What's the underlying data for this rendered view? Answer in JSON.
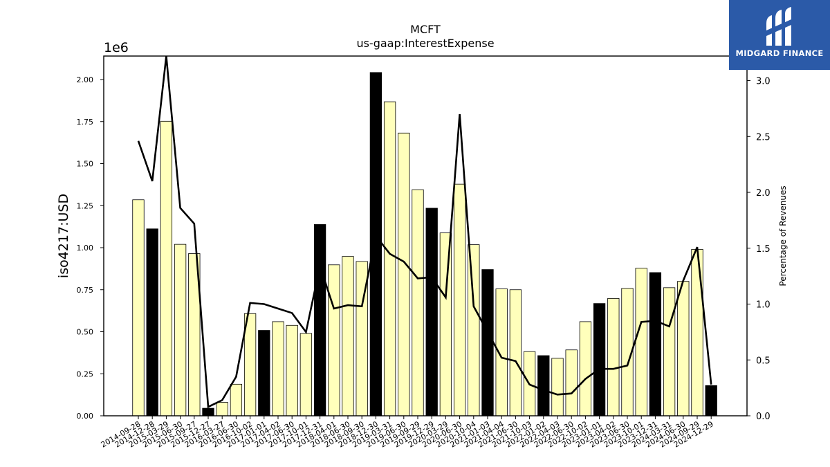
{
  "chart_data": {
    "type": "bar",
    "title": "MCFT",
    "subtitle": "us-gaap:InterestExpense",
    "ylabel": "iso4217:USD",
    "y_offset_label": "1e6",
    "ylim": [
      0,
      2140000
    ],
    "yticks": [
      "0.00",
      "0.25",
      "0.50",
      "0.75",
      "1.00",
      "1.25",
      "1.50",
      "1.75",
      "2.00"
    ],
    "ytick_values": [
      0,
      250000,
      500000,
      750000,
      1000000,
      1250000,
      1500000,
      1750000,
      2000000
    ],
    "y2label": "Percentage of Revenues",
    "y2lim": [
      0,
      3.22
    ],
    "y2ticks": [
      "0.0",
      "0.5",
      "1.0",
      "1.5",
      "2.0",
      "2.5",
      "3.0"
    ],
    "y2tick_values": [
      0,
      0.5,
      1.0,
      1.5,
      2.0,
      2.5,
      3.0
    ],
    "grid": false,
    "categories": [
      "2014-09-28",
      "2014-12-28",
      "2015-03-29",
      "2015-06-30",
      "2015-09-27",
      "2015-12-27",
      "2016-03-27",
      "2016-06-30",
      "2016-10-02",
      "2017-01-01",
      "2017-04-02",
      "2017-06-30",
      "2017-10-01",
      "2017-12-31",
      "2018-04-01",
      "2018-06-30",
      "2018-09-30",
      "2018-12-30",
      "2019-03-31",
      "2019-06-30",
      "2019-09-29",
      "2019-12-29",
      "2020-03-29",
      "2020-06-30",
      "2020-10-04",
      "2021-01-03",
      "2021-04-04",
      "2021-06-30",
      "2021-10-03",
      "2022-01-02",
      "2022-04-03",
      "2022-06-30",
      "2022-10-02",
      "2023-01-01",
      "2023-04-02",
      "2023-06-30",
      "2023-10-01",
      "2023-12-31",
      "2024-03-31",
      "2024-06-30",
      "2024-09-29",
      "2024-12-29"
    ],
    "series": [
      {
        "type": "bar",
        "values": [
          1285000,
          1112000,
          1752000,
          1020000,
          965000,
          45000,
          80000,
          188000,
          608000,
          508000,
          560000,
          538000,
          490000,
          1138000,
          898000,
          948000,
          918000,
          2042000,
          1868000,
          1682000,
          1345000,
          1235000,
          1088000,
          1378000,
          1018000,
          870000,
          755000,
          750000,
          382000,
          358000,
          342000,
          392000,
          560000,
          668000,
          698000,
          758000,
          878000,
          852000,
          762000,
          800000,
          990000,
          180000
        ],
        "highlight": [
          false,
          true,
          false,
          false,
          false,
          true,
          false,
          false,
          false,
          true,
          false,
          false,
          false,
          true,
          false,
          false,
          false,
          true,
          false,
          false,
          false,
          true,
          false,
          false,
          false,
          true,
          false,
          false,
          false,
          true,
          false,
          false,
          false,
          true,
          false,
          false,
          false,
          true,
          false,
          false,
          false,
          true
        ]
      },
      {
        "type": "line",
        "axis": "right",
        "values": [
          2.46,
          2.1,
          3.22,
          1.86,
          1.72,
          0.08,
          0.14,
          0.35,
          1.01,
          1.0,
          0.96,
          0.92,
          0.75,
          1.34,
          0.96,
          0.99,
          0.98,
          1.61,
          1.45,
          1.38,
          1.23,
          1.24,
          1.06,
          2.7,
          0.98,
          0.75,
          0.52,
          0.49,
          0.28,
          0.23,
          0.19,
          0.2,
          0.33,
          0.42,
          0.42,
          0.45,
          0.84,
          0.85,
          0.8,
          1.21,
          1.51,
          0.28
        ]
      }
    ],
    "colors": {
      "bar_fill": "#ffffbb",
      "bar_highlight": "#000000",
      "line": "#000000"
    }
  },
  "logo": {
    "text": "MIDGARD FINANCE",
    "bg": "#2b5aa8"
  }
}
